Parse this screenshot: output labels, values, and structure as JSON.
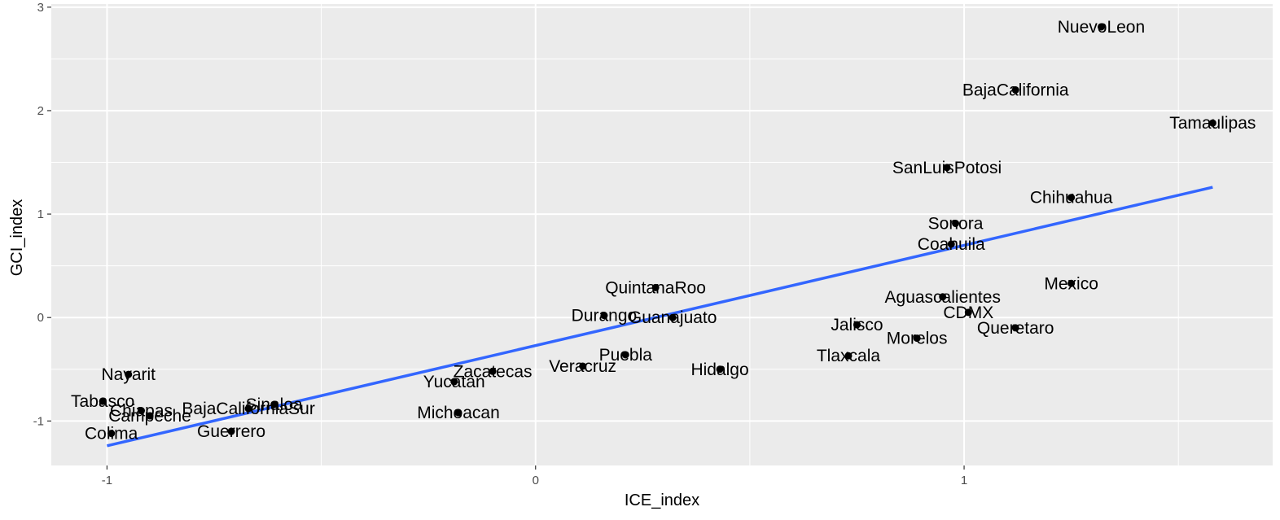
{
  "chart_data": {
    "type": "scatter",
    "xlabel": "ICE_index",
    "ylabel": "GCI_index",
    "xlim": [
      -1.13,
      1.72
    ],
    "ylim": [
      -1.43,
      3.03
    ],
    "x_ticks": [
      -1,
      0,
      1
    ],
    "x_tick_labels": [
      "-1",
      "0",
      "1"
    ],
    "y_ticks": [
      -1,
      0,
      1,
      2,
      3
    ],
    "y_tick_labels": [
      "-1",
      "0",
      "1",
      "2",
      "3"
    ],
    "grid": true,
    "background": "#ebebeb",
    "trend_color": "#3366ff",
    "point_color": "#000000",
    "trend_line": {
      "x": [
        -1.0,
        1.58
      ],
      "y": [
        -1.24,
        1.26
      ]
    },
    "points": [
      {
        "label": "NuevoLeon",
        "x": 1.32,
        "y": 2.81
      },
      {
        "label": "BajaCalifornia",
        "x": 1.12,
        "y": 2.2
      },
      {
        "label": "Tamaulipas",
        "x": 1.58,
        "y": 1.88
      },
      {
        "label": "SanLuisPotosi",
        "x": 0.96,
        "y": 1.45
      },
      {
        "label": "Chihuahua",
        "x": 1.25,
        "y": 1.16
      },
      {
        "label": "Sonora",
        "x": 0.98,
        "y": 0.91
      },
      {
        "label": "Coahuila",
        "x": 0.97,
        "y": 0.71
      },
      {
        "label": "Mexico",
        "x": 1.25,
        "y": 0.33
      },
      {
        "label": "Aguascalientes",
        "x": 0.95,
        "y": 0.2
      },
      {
        "label": "CDMX",
        "x": 1.01,
        "y": 0.05
      },
      {
        "label": "Queretaro",
        "x": 1.12,
        "y": -0.1
      },
      {
        "label": "Jalisco",
        "x": 0.75,
        "y": -0.07
      },
      {
        "label": "Morelos",
        "x": 0.89,
        "y": -0.2
      },
      {
        "label": "Tlaxcala",
        "x": 0.73,
        "y": -0.37
      },
      {
        "label": "QuintanaRoo",
        "x": 0.28,
        "y": 0.29
      },
      {
        "label": "Durango",
        "x": 0.16,
        "y": 0.02
      },
      {
        "label": "Guanajuato",
        "x": 0.32,
        "y": 0.0
      },
      {
        "label": "Puebla",
        "x": 0.21,
        "y": -0.36
      },
      {
        "label": "Hidalgo",
        "x": 0.43,
        "y": -0.5
      },
      {
        "label": "Veracruz",
        "x": 0.11,
        "y": -0.47
      },
      {
        "label": "Zacatecas",
        "x": -0.1,
        "y": -0.52
      },
      {
        "label": "Yucatan",
        "x": -0.19,
        "y": -0.62
      },
      {
        "label": "Michoacan",
        "x": -0.18,
        "y": -0.92
      },
      {
        "label": "Nayarit",
        "x": -0.95,
        "y": -0.55
      },
      {
        "label": "Tabasco",
        "x": -1.01,
        "y": -0.81
      },
      {
        "label": "Chiapas",
        "x": -0.92,
        "y": -0.9
      },
      {
        "label": "Campeche",
        "x": -0.9,
        "y": -0.95
      },
      {
        "label": "Colima",
        "x": -0.99,
        "y": -1.12
      },
      {
        "label": "BajaCaliforniaSur",
        "x": -0.67,
        "y": -0.88
      },
      {
        "label": "Sinaloa",
        "x": -0.61,
        "y": -0.84
      },
      {
        "label": "Guerrero",
        "x": -0.71,
        "y": -1.1
      }
    ]
  }
}
